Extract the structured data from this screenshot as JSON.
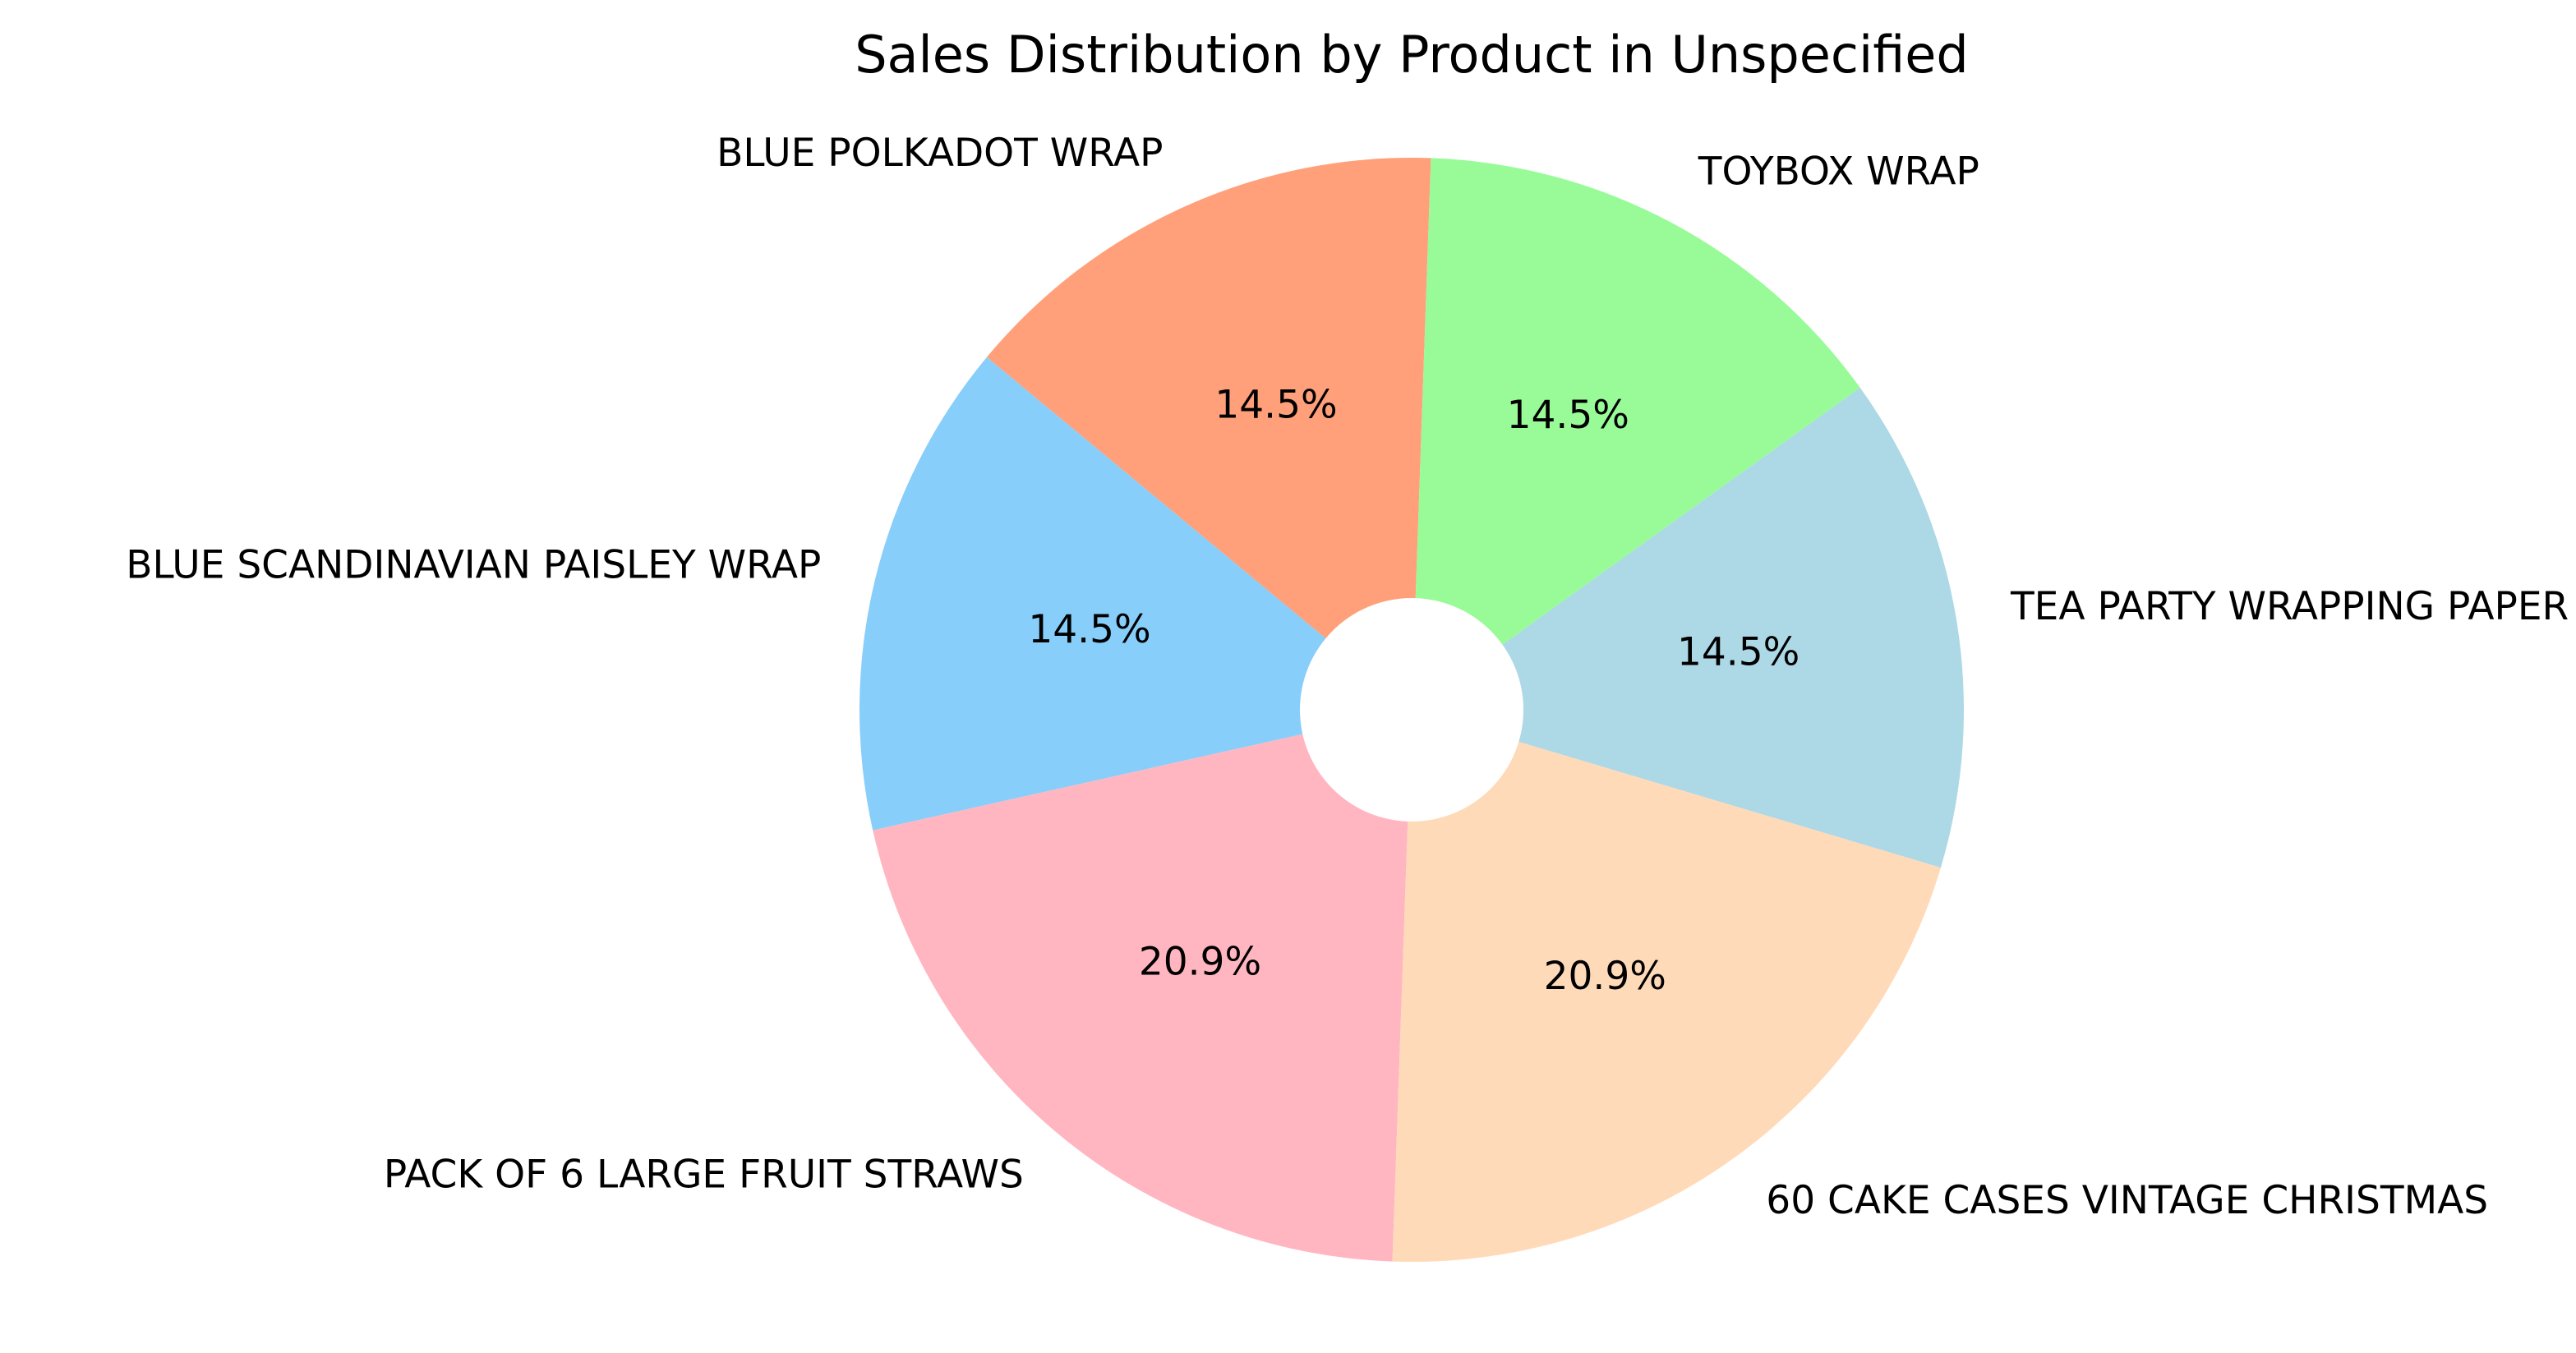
{
  "chart_data": {
    "type": "pie",
    "title": "Sales Distribution by Product in Unspecified",
    "categories": [
      "BLUE POLKADOT WRAP",
      "BLUE SCANDINAVIAN PAISLEY WRAP",
      "PACK OF 6 LARGE FRUIT STRAWS",
      "60 CAKE CASES VINTAGE CHRISTMAS",
      "TEA PARTY  WRAPPING PAPER",
      "TOYBOX  WRAP"
    ],
    "values": [
      14.5,
      14.5,
      20.9,
      20.9,
      14.5,
      14.5
    ],
    "percent_labels": [
      "14.5%",
      "14.5%",
      "20.9%",
      "20.9%",
      "14.5%",
      "14.5%"
    ],
    "colors": [
      "#FFA07A",
      "#87CEFA",
      "#FFB6C1",
      "#FFDAB9",
      "#ADD8E6",
      "#98FB98"
    ],
    "start_angle_deg": 88,
    "direction": "counterclockwise",
    "donut_hole": true,
    "legend": "none"
  }
}
